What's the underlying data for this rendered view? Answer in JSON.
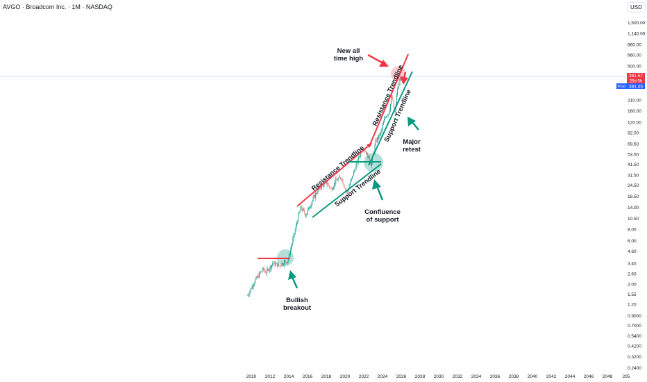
{
  "header": {
    "title": "AVGO · Broadcom Inc. · 1M · NASDAQ",
    "currency": "USD"
  },
  "chart_data": {
    "type": "candlestick",
    "scale": "log",
    "y_ticks": [
      "1,500.00",
      "1,140.00",
      "860.00",
      "660.00",
      "500.00",
      "210.00",
      "160.00",
      "120.00",
      "92.00",
      "69.50",
      "53.50",
      "41.50",
      "31.50",
      "24.50",
      "18.50",
      "14.00",
      "10.50",
      "8.00",
      "6.00",
      "4.60",
      "3.40",
      "2.60",
      "2.00",
      "1.55",
      "1.20",
      "0.9000",
      "0.7000",
      "0.5400",
      "0.4200",
      "0.3200",
      "0.2400"
    ],
    "x_ticks": [
      "2010",
      "2012",
      "2014",
      "2016",
      "2018",
      "2020",
      "2022",
      "2024",
      "2026",
      "2028",
      "2030",
      "2032",
      "2034",
      "2036",
      "2038",
      "2040",
      "2042",
      "2044",
      "2046",
      "2048",
      "205"
    ],
    "price_path": {
      "x": [
        2009.6,
        2010.3,
        2011.2,
        2011.6,
        2012.3,
        2013.0,
        2013.5,
        2013.9,
        2014.5,
        2015.0,
        2015.3,
        2015.8,
        2016.2,
        2016.9,
        2017.5,
        2018.1,
        2018.5,
        2019.0,
        2019.6,
        2020.2,
        2020.9,
        2021.5,
        2021.9,
        2022.4,
        2022.8,
        2023.3,
        2023.8,
        2024.3,
        2024.7,
        2025.0,
        2025.3,
        2025.6,
        2026.0
      ],
      "y": [
        1.5,
        2.1,
        2.9,
        2.7,
        3.4,
        3.2,
        3.5,
        3.6,
        6.5,
        11,
        14,
        11.5,
        14,
        20,
        24,
        26,
        22,
        27,
        30,
        20,
        33,
        50,
        65,
        52,
        41,
        75,
        90,
        140,
        155,
        235,
        145,
        280,
        381.5
      ]
    },
    "current_price": {
      "label": "381.57",
      "countdown": "29d 0h",
      "post_label": "Post",
      "post_price": "381.45"
    },
    "colors": {
      "up": "#26a69a",
      "down": "#ef5350",
      "resistance": "#f23645",
      "support": "#089981"
    },
    "annotations": {
      "new_high": "New all time high",
      "major_retest": "Major retest",
      "confluence": "Confluence of support",
      "breakout": "Bullish breakout",
      "resistance": "Resistance Trendline",
      "support": "Support Trendline"
    }
  }
}
